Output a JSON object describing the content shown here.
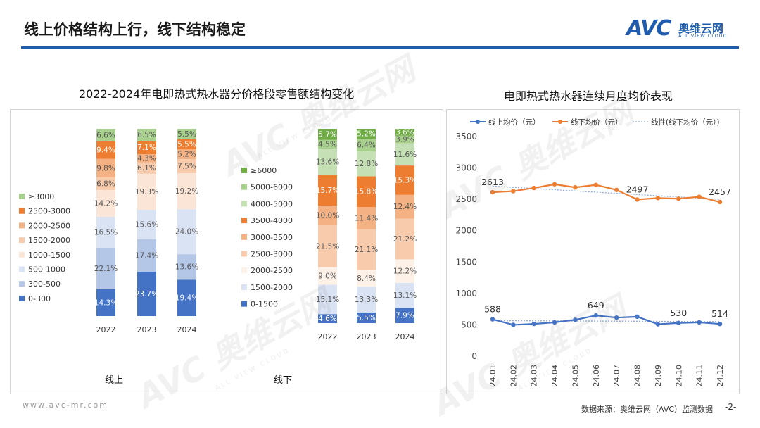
{
  "page": {
    "title": "线上价格结构上行，线下结构稳定",
    "footer_url": "www.avc-mr.com",
    "source": "数据来源：奥维云网（AVC）监测数据",
    "page_number": "-2-"
  },
  "logo": {
    "mark": "AVC",
    "cn": "奥维云网",
    "en": "ALL VIEW CLOUD"
  },
  "watermark": {
    "mark": "AVC",
    "cn": "奥维云网",
    "en": "ALL VIEW CLOUD"
  },
  "colors": {
    "online": [
      "#4472c4",
      "#b4c7e7",
      "#dae3f3",
      "#fbe5d6",
      "#f8cbad",
      "#f4b183",
      "#ed7d31",
      "#a9d18e"
    ],
    "offline": [
      "#4472c4",
      "#dae3f3",
      "#fdf1e8",
      "#f8cbad",
      "#f4b183",
      "#ed7d31",
      "#c5e0b4",
      "#a9d18e",
      "#70ad47"
    ],
    "line_online": "#4472c4",
    "line_offline": "#ed7d31",
    "trend": "#8faadc"
  },
  "chart_data": [
    {
      "type": "bar",
      "stacked": true,
      "title": "2022-2024年电即热式热水器分价格段零售额结构变化",
      "group_label": "线上",
      "categories": [
        "2022",
        "2023",
        "2024"
      ],
      "series": [
        {
          "name": "0-300",
          "values": [
            14.3,
            23.7,
            19.4
          ],
          "labels": [
            "14.3%",
            "23.7%",
            "19.4%"
          ]
        },
        {
          "name": "300-500",
          "values": [
            22.1,
            17.4,
            13.6
          ],
          "labels": [
            "22.1%",
            "17.4%",
            "13.6%"
          ]
        },
        {
          "name": "500-1000",
          "values": [
            16.5,
            15.6,
            24.0
          ],
          "labels": [
            "16.5%",
            "15.6%",
            "24.0%"
          ]
        },
        {
          "name": "1000-1500",
          "values": [
            14.2,
            19.3,
            19.2
          ],
          "labels": [
            "14.2%",
            "19.3%",
            "19.2%"
          ]
        },
        {
          "name": "1500-2000",
          "values": [
            6.8,
            6.1,
            7.5
          ],
          "labels": [
            "6.8%",
            "6.1%",
            "7.5%"
          ]
        },
        {
          "name": "2000-2500",
          "values": [
            9.8,
            4.3,
            5.2
          ],
          "labels": [
            "9.8%",
            "4.3%",
            "5.2%"
          ]
        },
        {
          "name": "2500-3000",
          "values": [
            9.4,
            7.1,
            5.5
          ],
          "labels": [
            "9.4%",
            "7.1%",
            "5.5%"
          ]
        },
        {
          "name": "≥3000",
          "values": [
            6.6,
            6.5,
            5.5
          ],
          "labels": [
            "6.6%",
            "6.5%",
            "5.5%"
          ]
        }
      ]
    },
    {
      "type": "bar",
      "stacked": true,
      "group_label": "线下",
      "categories": [
        "2022",
        "2023",
        "2024"
      ],
      "series": [
        {
          "name": "0-1500",
          "values": [
            4.6,
            5.5,
            7.9
          ],
          "labels": [
            "4.6%",
            "5.5%",
            "7.9%"
          ]
        },
        {
          "name": "1500-2000",
          "values": [
            15.1,
            13.3,
            13.1
          ],
          "labels": [
            "15.1%",
            "13.3%",
            "13.1%"
          ]
        },
        {
          "name": "2000-2500",
          "values": [
            9.0,
            8.4,
            12.2
          ],
          "labels": [
            "9.0%",
            "8.4%",
            "12.2%"
          ]
        },
        {
          "name": "2500-3000",
          "values": [
            21.5,
            21.1,
            21.2
          ],
          "labels": [
            "21.5%",
            "21.1%",
            "21.2%"
          ]
        },
        {
          "name": "3000-3500",
          "values": [
            10.0,
            11.4,
            12.4
          ],
          "labels": [
            "10.0%",
            "11.4%",
            "12.4%"
          ]
        },
        {
          "name": "3500-4000",
          "values": [
            15.7,
            15.8,
            15.3
          ],
          "labels": [
            "15.7%",
            "15.8%",
            "15.3%"
          ]
        },
        {
          "name": "4000-5000",
          "values": [
            13.6,
            12.8,
            11.6
          ],
          "labels": [
            "13.6%",
            "12.8%",
            "11.6%"
          ]
        },
        {
          "name": "5000-6000",
          "values": [
            4.5,
            6.4,
            3.9
          ],
          "labels": [
            "4.5%",
            "6.4%",
            "3.9%"
          ]
        },
        {
          "name": "≥6000",
          "values": [
            5.7,
            5.2,
            3.6
          ],
          "labels": [
            "5.7%",
            "5.2%",
            "3.6%"
          ]
        }
      ]
    },
    {
      "type": "line",
      "title": "电即热式热水器连续月度均价表现",
      "x": [
        "24.01",
        "24.02",
        "24.03",
        "24.04",
        "24.05",
        "24.06",
        "24.07",
        "24.08",
        "24.09",
        "24.10",
        "24.11",
        "24.12"
      ],
      "ylim": [
        0,
        3500
      ],
      "yticks": [
        0,
        500,
        1000,
        1500,
        2000,
        2500,
        3000,
        3500
      ],
      "grid": false,
      "legend": "top",
      "series": [
        {
          "name": "线上均价（元）",
          "values": [
            588,
            500,
            515,
            540,
            580,
            649,
            615,
            630,
            510,
            530,
            540,
            514
          ]
        },
        {
          "name": "线下均价（元）",
          "values": [
            2613,
            2630,
            2680,
            2740,
            2690,
            2730,
            2650,
            2497,
            2520,
            2510,
            2540,
            2457
          ]
        },
        {
          "name": "线性(线下均价（元）)",
          "trend_of": "线下均价（元）"
        }
      ],
      "data_labels": [
        {
          "series": "线下均价（元）",
          "x": "24.01",
          "text": "2613"
        },
        {
          "series": "线下均价（元）",
          "x": "24.08",
          "text": "2497"
        },
        {
          "series": "线下均价（元）",
          "x": "24.12",
          "text": "2457"
        },
        {
          "series": "线上均价（元）",
          "x": "24.01",
          "text": "588"
        },
        {
          "series": "线上均价（元）",
          "x": "24.06",
          "text": "649"
        },
        {
          "series": "线上均价（元）",
          "x": "24.10",
          "text": "530"
        },
        {
          "series": "线上均价（元）",
          "x": "24.12",
          "text": "514"
        }
      ]
    }
  ]
}
